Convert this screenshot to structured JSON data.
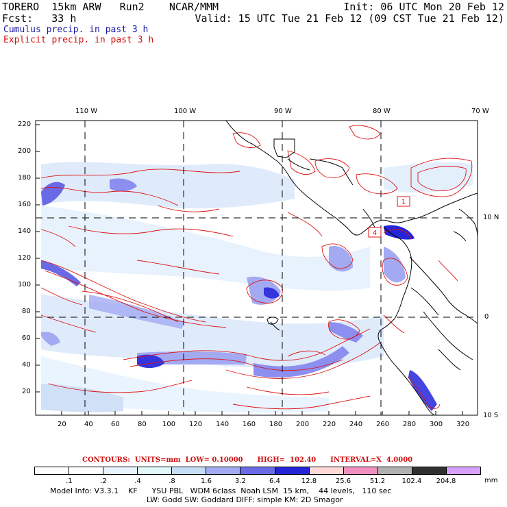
{
  "header": {
    "model": "TORERO  15km ARW   Run2    NCAR/MMM",
    "init": "Init: 06 UTC Mon 20 Feb 12",
    "fcst": "Fcst:   33 h",
    "valid": "Valid: 15 UTC Tue 21 Feb 12 (09 CST Tue 21 Feb 12)",
    "line_cumulus": "Cumulus precip. in past 3 h",
    "line_explicit": "Explicit precip. in past 3 h"
  },
  "map": {
    "lon_labels": [
      "110 W",
      "100 W",
      "90 W",
      "80 W",
      "70 W"
    ],
    "lat_labels": [
      "10 N",
      "0",
      "10 S"
    ],
    "y_ticks": [
      "220",
      "200",
      "180",
      "160",
      "140",
      "120",
      "100",
      "80",
      "60",
      "40",
      "20"
    ],
    "x_ticks": [
      "20",
      "40",
      "60",
      "80",
      "100",
      "120",
      "140",
      "160",
      "180",
      "200",
      "220",
      "240",
      "260",
      "280",
      "300",
      "320"
    ],
    "box_labels": [
      "1",
      "4"
    ],
    "colors": {
      "contour": "#dd1111",
      "coast": "#000000",
      "grid": "#000000"
    }
  },
  "contours_line": "CONTOURS:  UNITS=mm  LOW= 0.10000      HIGH=  102.40      INTERVAL=X  4.0000",
  "colorbar": {
    "labels": [
      ".1",
      ".2",
      ".4",
      ".8",
      "1.6",
      "3.2",
      "6.4",
      "12.8",
      "25.6",
      "51.2",
      "102.4",
      "204.8"
    ],
    "unit": "mm",
    "colors": [
      "#ffffff",
      "#ffffff",
      "#e8f4ff",
      "#e0f8f8",
      "#c6ddf6",
      "#a3aaf2",
      "#6a6ae6",
      "#2525d8",
      "#ffd8d8",
      "#f090c0",
      "#b0b0b0",
      "#303030",
      "#d8a0ff"
    ]
  },
  "model_info": {
    "line1": "Model Info: V3.3.1    KF      YSU PBL   WDM 6class  Noah LSM  15 km,    44 levels,   110 sec",
    "line2": "LW: Godd SW: Goddard DIFF: simple KM: 2D Smagor"
  }
}
